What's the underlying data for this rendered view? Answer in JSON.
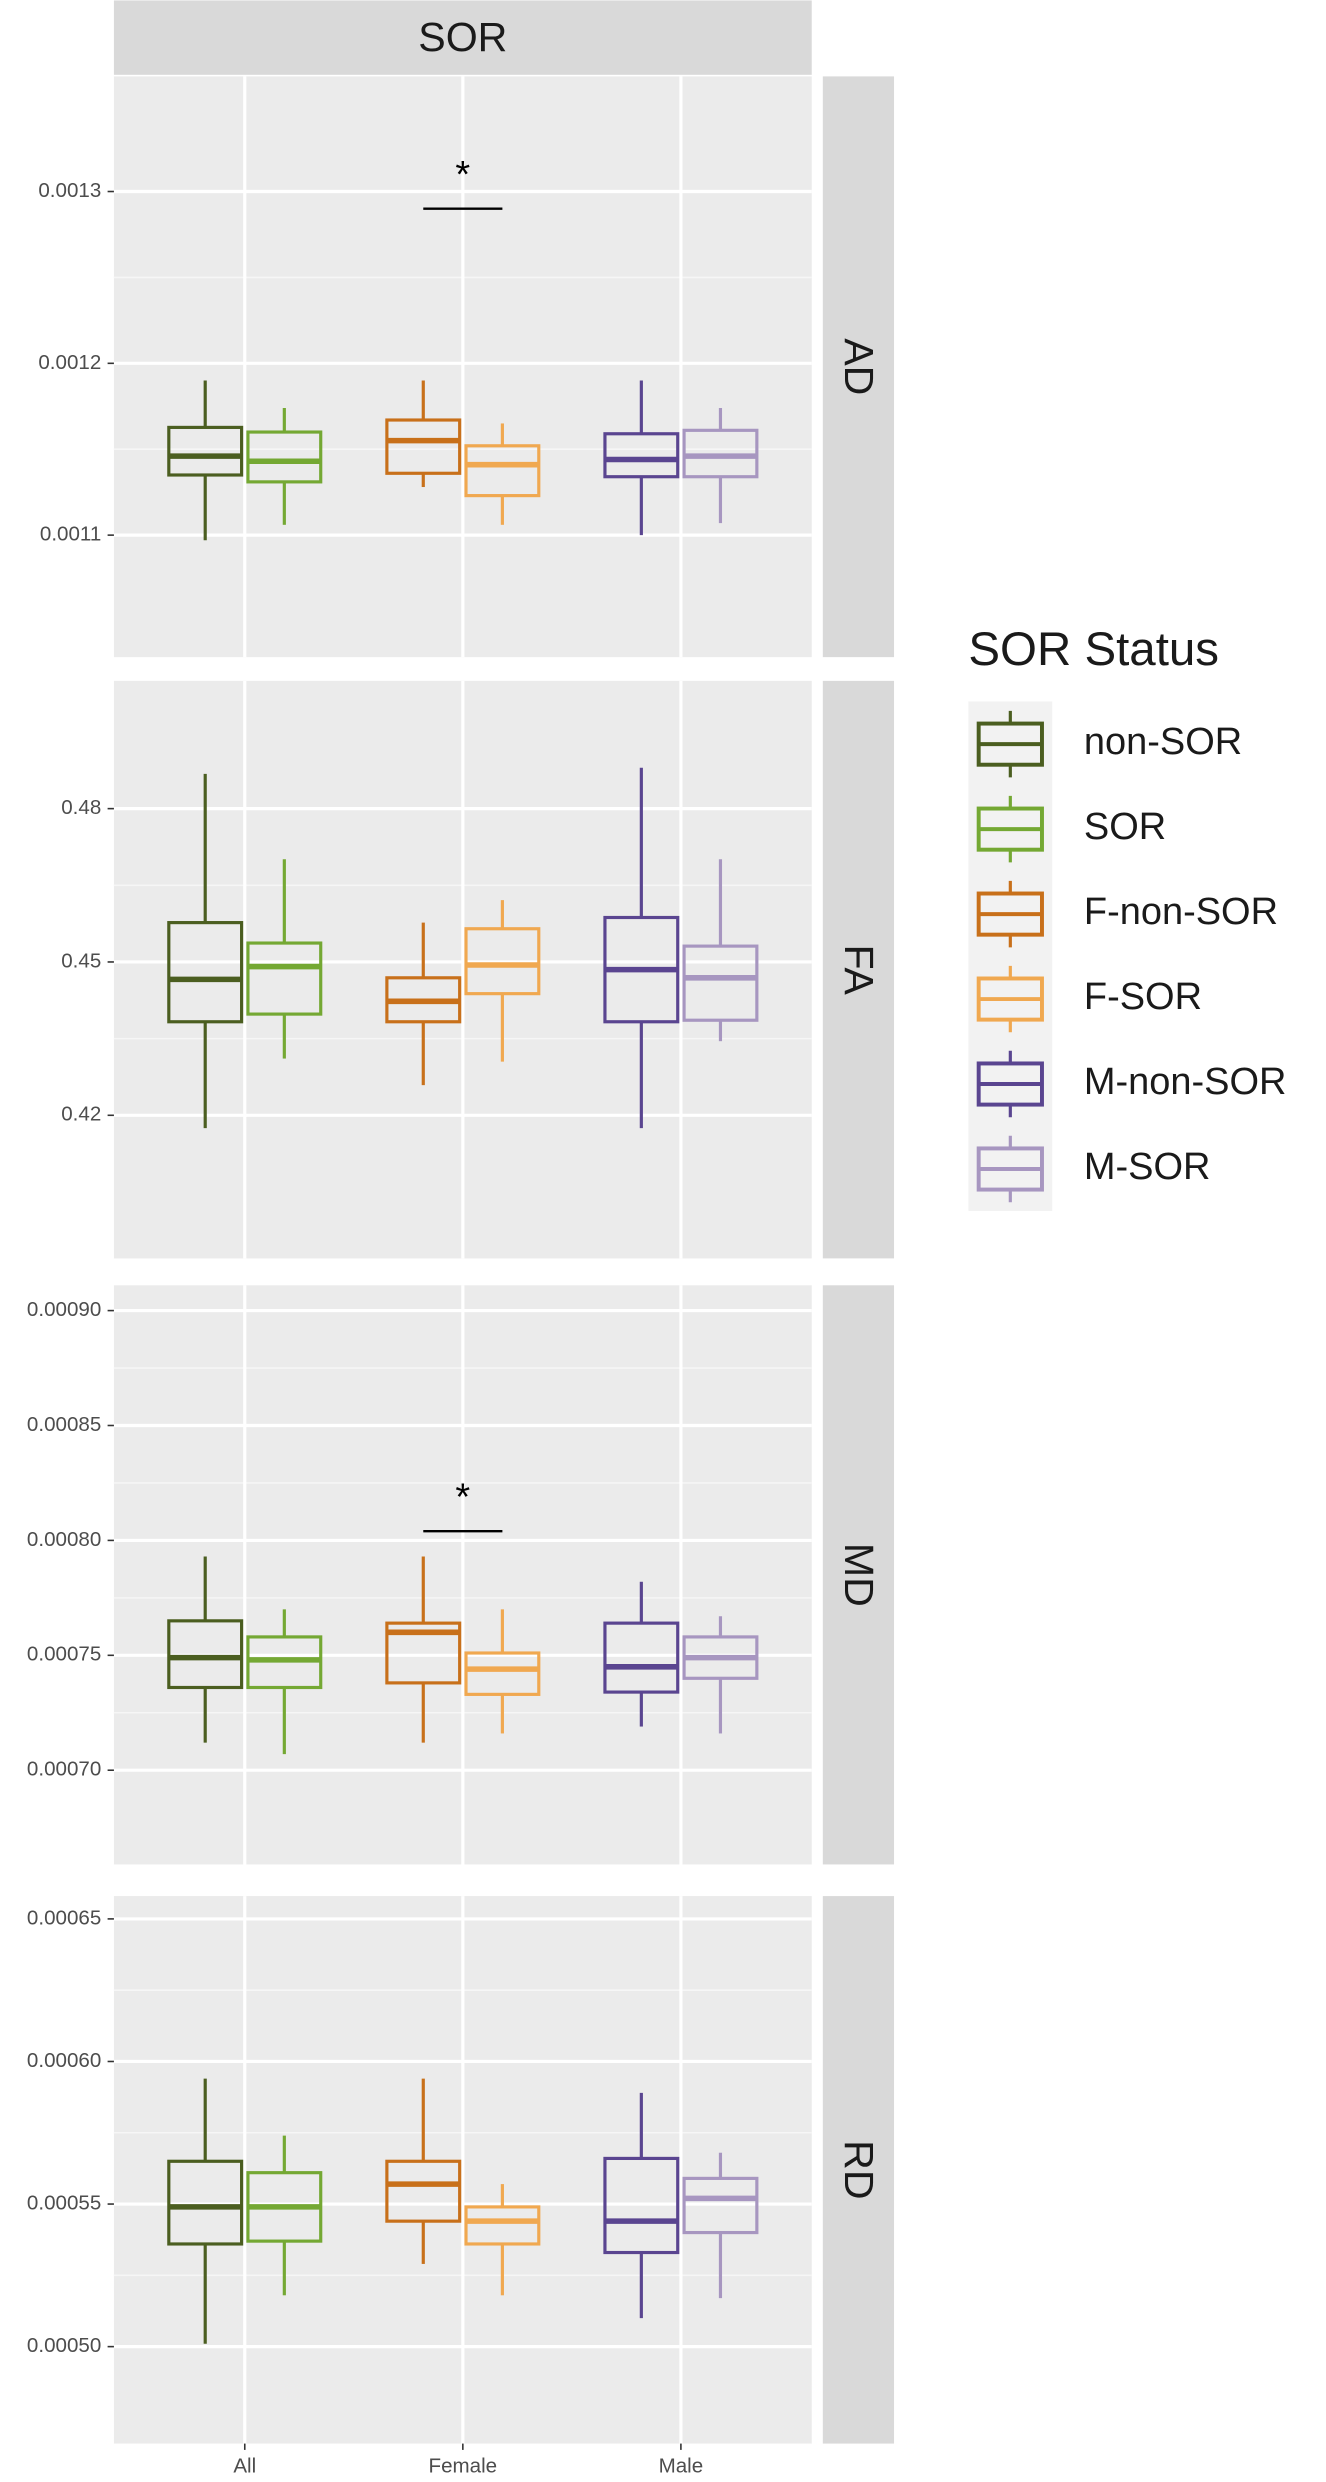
{
  "chart_data": {
    "type": "box",
    "title": "SOR",
    "legend_title": "SOR Status",
    "categories": [
      "All",
      "Female",
      "Male"
    ],
    "series": [
      {
        "name": "non-SOR",
        "color": "#4b5e20"
      },
      {
        "name": "SOR",
        "color": "#74a833"
      },
      {
        "name": "F-non-SOR",
        "color": "#c8701a"
      },
      {
        "name": "F-SOR",
        "color": "#f0a850"
      },
      {
        "name": "M-non-SOR",
        "color": "#5a4590"
      },
      {
        "name": "M-SOR",
        "color": "#a796c0"
      }
    ],
    "grid": true,
    "panels": [
      {
        "label": "AD",
        "ylim": [
          0.001029,
          0.001367
        ],
        "yticks": [
          0.0011,
          0.0012,
          0.0013
        ],
        "values": [
          [
            0.001097,
            0.001135,
            0.001146,
            0.0011627,
            0.00119
          ],
          [
            0.001106,
            0.001131,
            0.001143,
            0.00116,
            0.001174
          ],
          [
            0.001128,
            0.001136,
            0.001155,
            0.001167,
            0.00119
          ],
          [
            0.001106,
            0.001123,
            0.001141,
            0.001152,
            0.001165
          ],
          [
            0.0011,
            0.001134,
            0.001144,
            0.001159,
            0.00119
          ],
          [
            0.001107,
            0.001134,
            0.001146,
            0.001161,
            0.001174
          ]
        ],
        "annotations": [
          {
            "label": "*",
            "value": 0.00129,
            "category": "Female"
          }
        ]
      },
      {
        "label": "FA",
        "ylim": [
          0.392,
          0.505
        ],
        "yticks": [
          0.42,
          0.45,
          0.48
        ],
        "values": [
          [
            0.4175,
            0.4383,
            0.4466,
            0.4577,
            0.4868
          ],
          [
            0.4311,
            0.4398,
            0.4491,
            0.4537,
            0.4701
          ],
          [
            0.4259,
            0.4383,
            0.4423,
            0.4469,
            0.4577
          ],
          [
            0.4305,
            0.4438,
            0.4494,
            0.4565,
            0.4621
          ],
          [
            0.4175,
            0.4383,
            0.4485,
            0.4587,
            0.488
          ],
          [
            0.4345,
            0.4386,
            0.4469,
            0.4531,
            0.4701
          ]
        ],
        "annotations": []
      },
      {
        "label": "MD",
        "ylim": [
          0.000659,
          0.000911
        ],
        "yticks": [
          {
            "value": 0.0007,
            "label": "0.00070"
          },
          0.00075,
          {
            "value": 0.0008,
            "label": "0.00080"
          },
          0.00085,
          {
            "value": 0.0009,
            "label": "0.00090"
          }
        ],
        "values": [
          [
            0.000712,
            0.000736,
            0.000749,
            0.000765,
            0.000793
          ],
          [
            0.000707,
            0.000736,
            0.000748,
            0.000758,
            0.00077
          ],
          [
            0.000712,
            0.000738,
            0.00076,
            0.000764,
            0.000793
          ],
          [
            0.000716,
            0.000733,
            0.000744,
            0.000751,
            0.00077
          ],
          [
            0.000719,
            0.000734,
            0.000745,
            0.000764,
            0.000782
          ],
          [
            0.000716,
            0.00074,
            0.000749,
            0.000758,
            0.000767
          ]
        ],
        "annotations": [
          {
            "label": "*",
            "value": 0.000804,
            "category": "Female"
          }
        ]
      },
      {
        "label": "RD",
        "ylim": [
          0.000466,
          0.000658
        ],
        "yticks": [
          {
            "value": 0.0005,
            "label": "0.00050"
          },
          0.00055,
          {
            "value": 0.0006,
            "label": "0.00060"
          },
          0.00065
        ],
        "values": [
          [
            0.000501,
            0.000536,
            0.000549,
            0.000565,
            0.000594
          ],
          [
            0.000518,
            0.000537,
            0.000549,
            0.000561,
            0.000574
          ],
          [
            0.000529,
            0.000544,
            0.000557,
            0.000565,
            0.000594
          ],
          [
            0.000518,
            0.000536,
            0.000544,
            0.000549,
            0.000557
          ],
          [
            0.00051,
            0.000533,
            0.000544,
            0.000566,
            0.000589
          ],
          [
            0.000517,
            0.00054,
            0.000552,
            0.000559,
            0.000568
          ]
        ],
        "annotations": []
      }
    ]
  }
}
